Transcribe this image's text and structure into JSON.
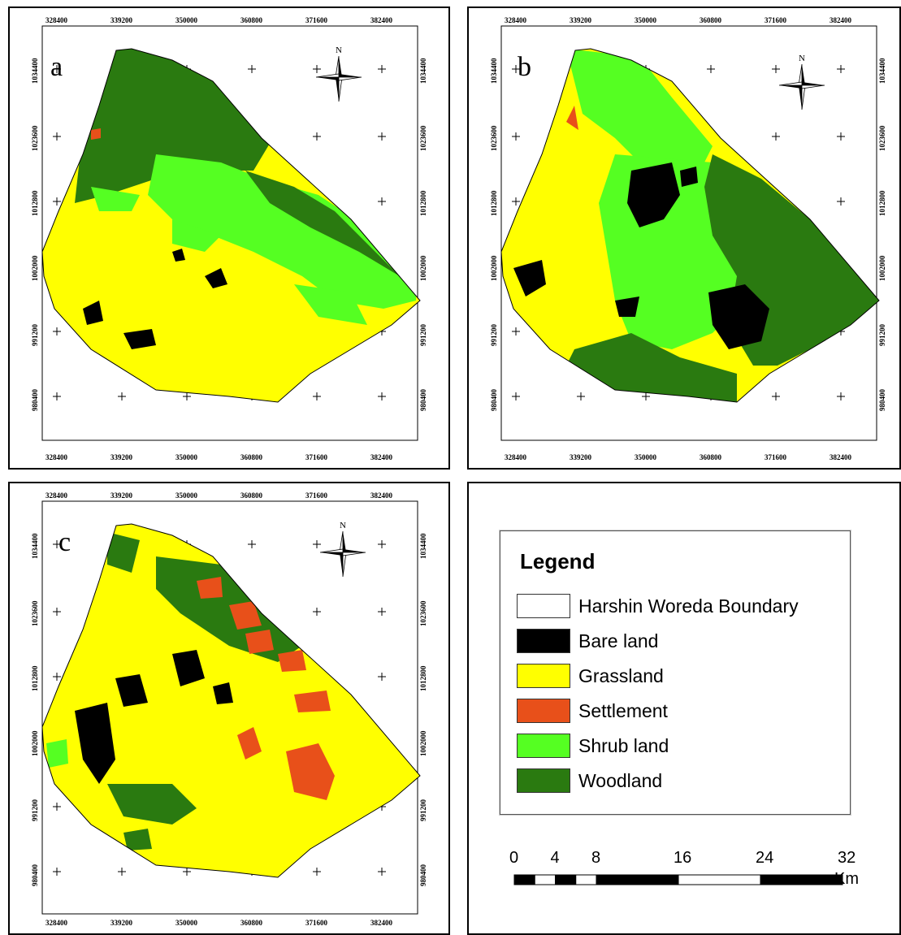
{
  "panels": [
    {
      "id": "a",
      "letter": "a"
    },
    {
      "id": "b",
      "letter": "b"
    },
    {
      "id": "c",
      "letter": "c"
    }
  ],
  "grid": {
    "x_ticks": [
      "328400",
      "339200",
      "350000",
      "360800",
      "371600",
      "382400"
    ],
    "y_ticks": [
      "1034400",
      "1023600",
      "1012800",
      "1002000",
      "991200",
      "980400"
    ]
  },
  "north_arrow": {
    "label": "N",
    "icon": "north-arrow-icon"
  },
  "legend": {
    "title": "Legend",
    "items": [
      {
        "label": "Harshin Woreda Boundary",
        "color": "#ffffff"
      },
      {
        "label": "Bare land",
        "color": "#000000"
      },
      {
        "label": "Grassland",
        "color": "#ffff00"
      },
      {
        "label": "Settlement",
        "color": "#e8501a"
      },
      {
        "label": "Shrub land",
        "color": "#55ff22"
      },
      {
        "label": "Woodland",
        "color": "#2a7a10"
      }
    ]
  },
  "scale_bar": {
    "labels": [
      "0",
      "4",
      "8",
      "16",
      "24",
      "32"
    ],
    "values": [
      0,
      4,
      8,
      16,
      24,
      32
    ],
    "unit": "Km"
  },
  "colors": {
    "bare": "#000000",
    "grass": "#ffff00",
    "settlement": "#e8501a",
    "shrub": "#55ff22",
    "wood": "#2a7a10"
  }
}
